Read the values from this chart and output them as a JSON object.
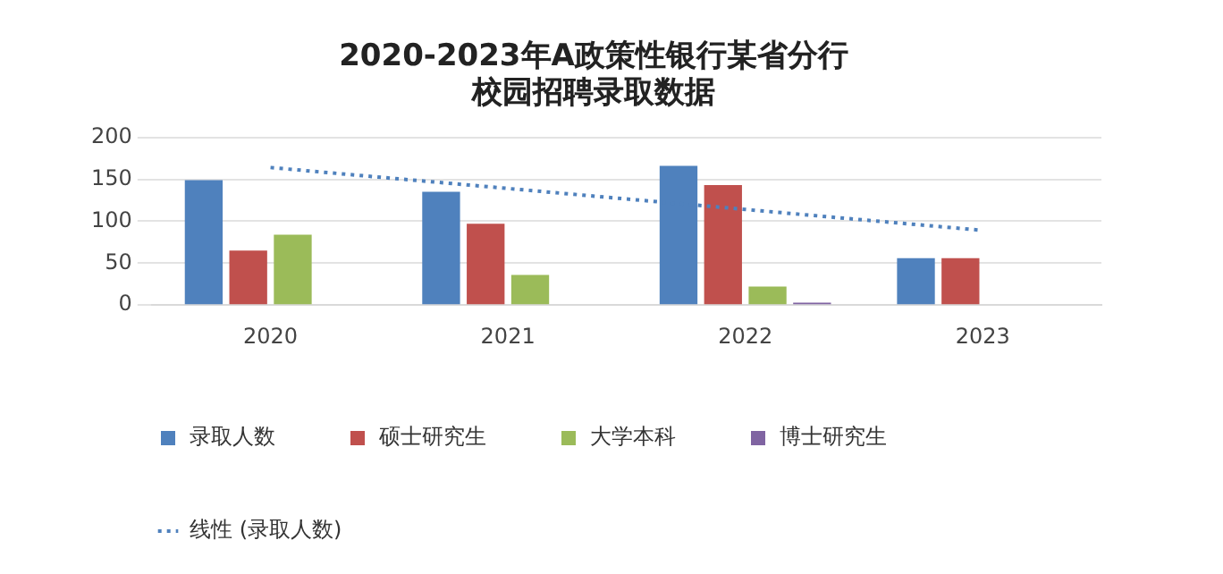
{
  "chart_data": {
    "type": "bar",
    "title": [
      "2020-2023年A政策性银行某省分行",
      "校园招聘录取数据"
    ],
    "categories": [
      "2020",
      "2021",
      "2022",
      "2023"
    ],
    "series": [
      {
        "name": "录取人数",
        "color": "#4f81bd",
        "values": [
          149,
          135,
          166,
          56
        ]
      },
      {
        "name": "硕士研究生",
        "color": "#c0504d",
        "values": [
          65,
          97,
          143,
          56
        ]
      },
      {
        "name": "大学本科",
        "color": "#9bbb59",
        "values": [
          84,
          36,
          22,
          null
        ]
      },
      {
        "name": "博士研究生",
        "color": "#8064a2",
        "values": [
          null,
          null,
          3,
          null
        ]
      },
      {
        "name": "线性 (录取人数)",
        "type": "line",
        "line_style": "dotted",
        "marker": "none",
        "color": "#4f81bd",
        "values": [
          164,
          139,
          114,
          89
        ]
      }
    ],
    "ylim": [
      0,
      200
    ],
    "yticks": [
      0,
      50,
      100,
      150,
      200
    ],
    "grid": "y",
    "legend": "bottom"
  }
}
